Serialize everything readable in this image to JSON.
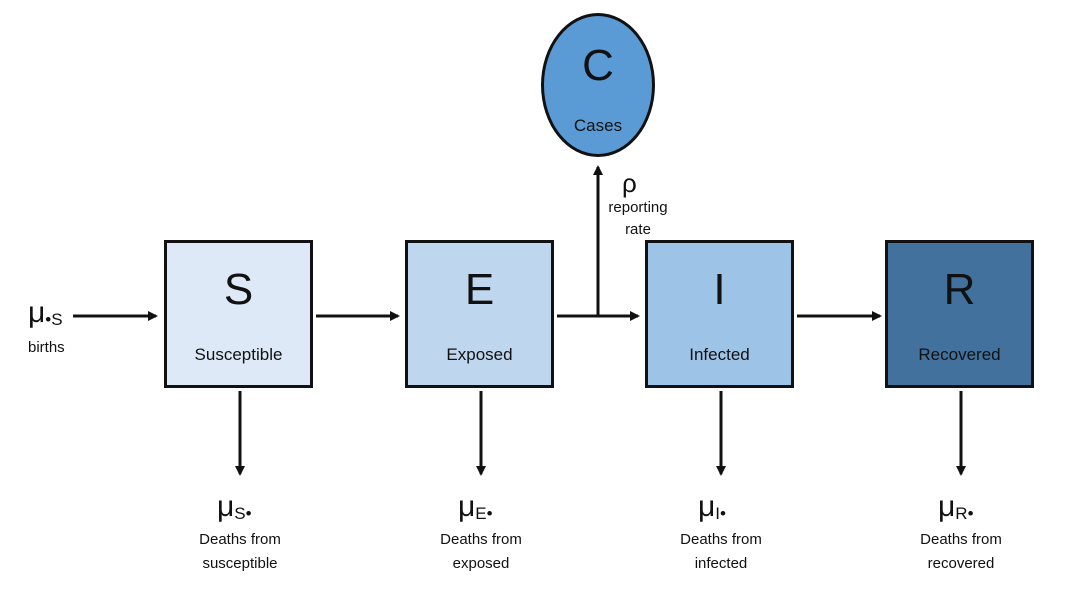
{
  "compartments": {
    "S": {
      "letter": "S",
      "label": "Susceptible",
      "color": "#dde9f6"
    },
    "E": {
      "letter": "E",
      "label": "Exposed",
      "color": "#bed6ee"
    },
    "I": {
      "letter": "I",
      "label": "Infected",
      "color": "#9dc3e6"
    },
    "R": {
      "letter": "R",
      "label": "Recovered",
      "color": "#41719c"
    }
  },
  "cases": {
    "letter": "C",
    "label": "Cases",
    "color": "#5b9bd5"
  },
  "births": {
    "symbol": "μ",
    "sub": "•S",
    "label": "births"
  },
  "reporting": {
    "symbol": "ρ",
    "line1": "reporting",
    "line2": "rate"
  },
  "deaths": {
    "S": {
      "symbol": "μ",
      "sub": "S•",
      "line1": "Deaths from",
      "line2": "susceptible"
    },
    "E": {
      "symbol": "μ",
      "sub": "E•",
      "line1": "Deaths from",
      "line2": "exposed"
    },
    "I": {
      "symbol": "μ",
      "sub": "I•",
      "line1": "Deaths from",
      "line2": "infected"
    },
    "R": {
      "symbol": "μ",
      "sub": "R•",
      "line1": "Deaths from",
      "line2": "recovered"
    }
  }
}
